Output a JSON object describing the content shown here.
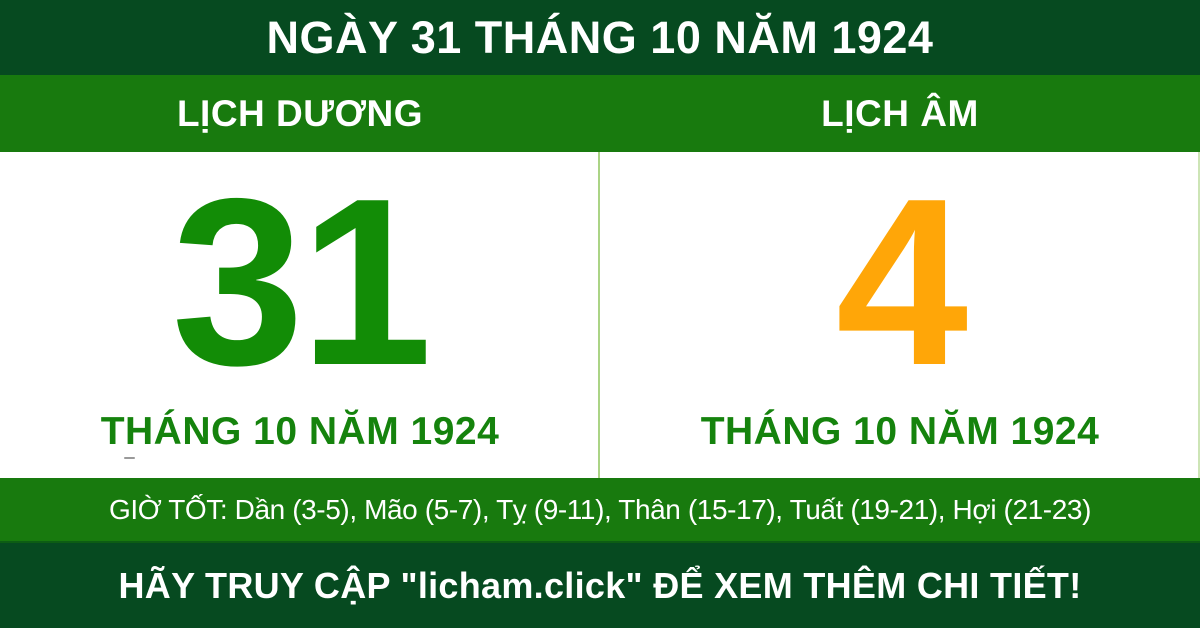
{
  "colors": {
    "dark_green": "#064a20",
    "band_green": "#187a0e",
    "day_green": "#128c06",
    "month_green": "#15830d",
    "lunar_orange": "#ffa608",
    "divider_green": "#abd486",
    "white": "#ffffff"
  },
  "header": {
    "title": "NGÀY 31 THÁNG 10 NĂM 1924"
  },
  "calendar": {
    "solar": {
      "heading": "LỊCH DƯƠNG",
      "day": "31",
      "month_year": "THÁNG 10 NĂM 1924"
    },
    "lunar": {
      "heading": "LỊCH ÂM",
      "day": "4",
      "month_year": "THÁNG 10 NĂM 1924"
    }
  },
  "good_hours": {
    "text": "GIỜ TỐT: Dần (3-5), Mão (5-7), Tỵ (9-11), Thân (15-17), Tuất (19-21), Hợi (21-23)"
  },
  "footer": {
    "text": "HÃY TRUY CẬP \"licham.click\" ĐỂ XEM THÊM CHI TIẾT!"
  }
}
